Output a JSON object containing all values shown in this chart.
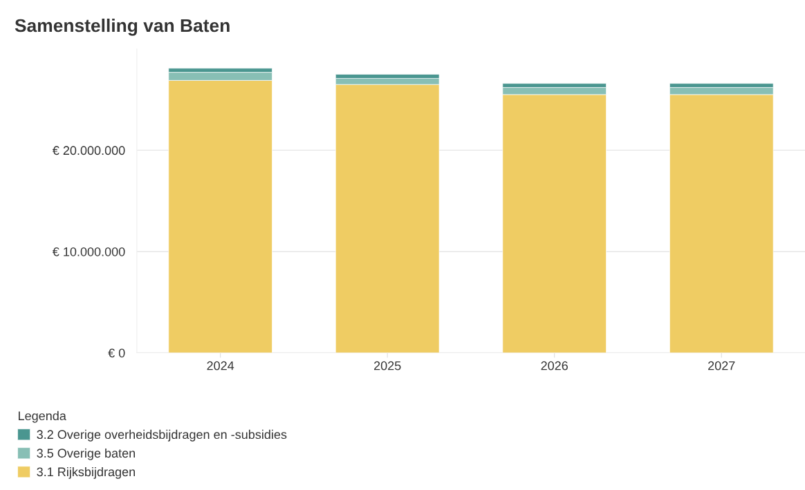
{
  "chart_data": {
    "type": "bar",
    "title": "Samenstelling van Baten",
    "stacked": true,
    "categories": [
      "2024",
      "2025",
      "2026",
      "2027"
    ],
    "series": [
      {
        "name": "3.1 Rijksbijdragen",
        "color": "#efcc63",
        "values": [
          26900000,
          26500000,
          25500000,
          25500000
        ]
      },
      {
        "name": "3.5 Overige baten",
        "color": "#88bfb5",
        "values": [
          800000,
          600000,
          700000,
          700000
        ]
      },
      {
        "name": "3.2 Overige overheidsbijdragen en -subsidies",
        "color": "#4a9690",
        "values": [
          400000,
          400000,
          400000,
          400000
        ]
      }
    ],
    "ylim": [
      0,
      30000000
    ],
    "yticks": [
      {
        "value": 0,
        "label": "€ 0"
      },
      {
        "value": 10000000,
        "label": "€ 10.000.000"
      },
      {
        "value": 20000000,
        "label": "€ 20.000.000"
      }
    ],
    "grid": "y",
    "legend": "bottom left",
    "legend_title": "Legenda"
  }
}
